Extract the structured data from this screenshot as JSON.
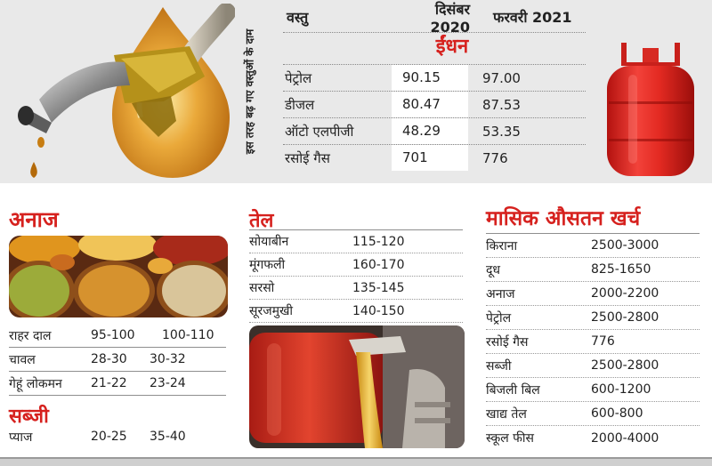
{
  "vertical_caption": "इस तरह बढ़ गए वस्तुओं के दाम",
  "fuel_table": {
    "headers": {
      "item": "वस्तु",
      "dec2020": "दिसंबर 2020",
      "feb2021": "फरवरी 2021"
    },
    "category": "ईंधन",
    "rows": [
      {
        "item": "पेट्रोल",
        "dec": "90.15",
        "feb": "97.00"
      },
      {
        "item": "डीजल",
        "dec": "80.47",
        "feb": "87.53"
      },
      {
        "item": "ऑटो एलपीजी",
        "dec": "48.29",
        "feb": "53.35"
      },
      {
        "item": "रसोई गैस",
        "dec": "701",
        "feb": "776"
      }
    ]
  },
  "grains": {
    "title": "अनाज",
    "rows": [
      {
        "item": "राहर दाल",
        "dec": "95-100",
        "feb": "100-110"
      },
      {
        "item": "चावल",
        "dec": "28-30",
        "feb": "30-32"
      },
      {
        "item": "गेहूं लोकमन",
        "dec": "21-22",
        "feb": "23-24"
      }
    ]
  },
  "vegetables": {
    "title": "सब्जी",
    "rows": [
      {
        "item": "प्याज",
        "dec": "20-25",
        "feb": "35-40"
      }
    ]
  },
  "oil": {
    "title": "तेल",
    "rows": [
      {
        "item": "सोयाबीन",
        "range": "115-120"
      },
      {
        "item": "मूंगफली",
        "range": "160-170"
      },
      {
        "item": "सरसो",
        "range": "135-145"
      },
      {
        "item": "सूरजमुखी",
        "range": "140-150"
      }
    ]
  },
  "monthly": {
    "title": "मासिक औसतन खर्च",
    "rows": [
      {
        "item": "किराना",
        "range": "2500-3000"
      },
      {
        "item": "दूध",
        "range": "825-1650"
      },
      {
        "item": "अनाज",
        "range": "2000-2200"
      },
      {
        "item": "पेट्रोल",
        "range": "2500-2800"
      },
      {
        "item": "रसोई गैस",
        "range": "776"
      },
      {
        "item": "सब्जी",
        "range": "2500-2800"
      },
      {
        "item": "बिजली बिल",
        "range": "600-1200"
      },
      {
        "item": "खाद्य तेल",
        "range": "600-800"
      },
      {
        "item": "स्कूल फीस",
        "range": "2000-4000"
      }
    ]
  },
  "colors": {
    "accent_red": "#d6211e",
    "panel_gray": "#e9e9e9"
  }
}
